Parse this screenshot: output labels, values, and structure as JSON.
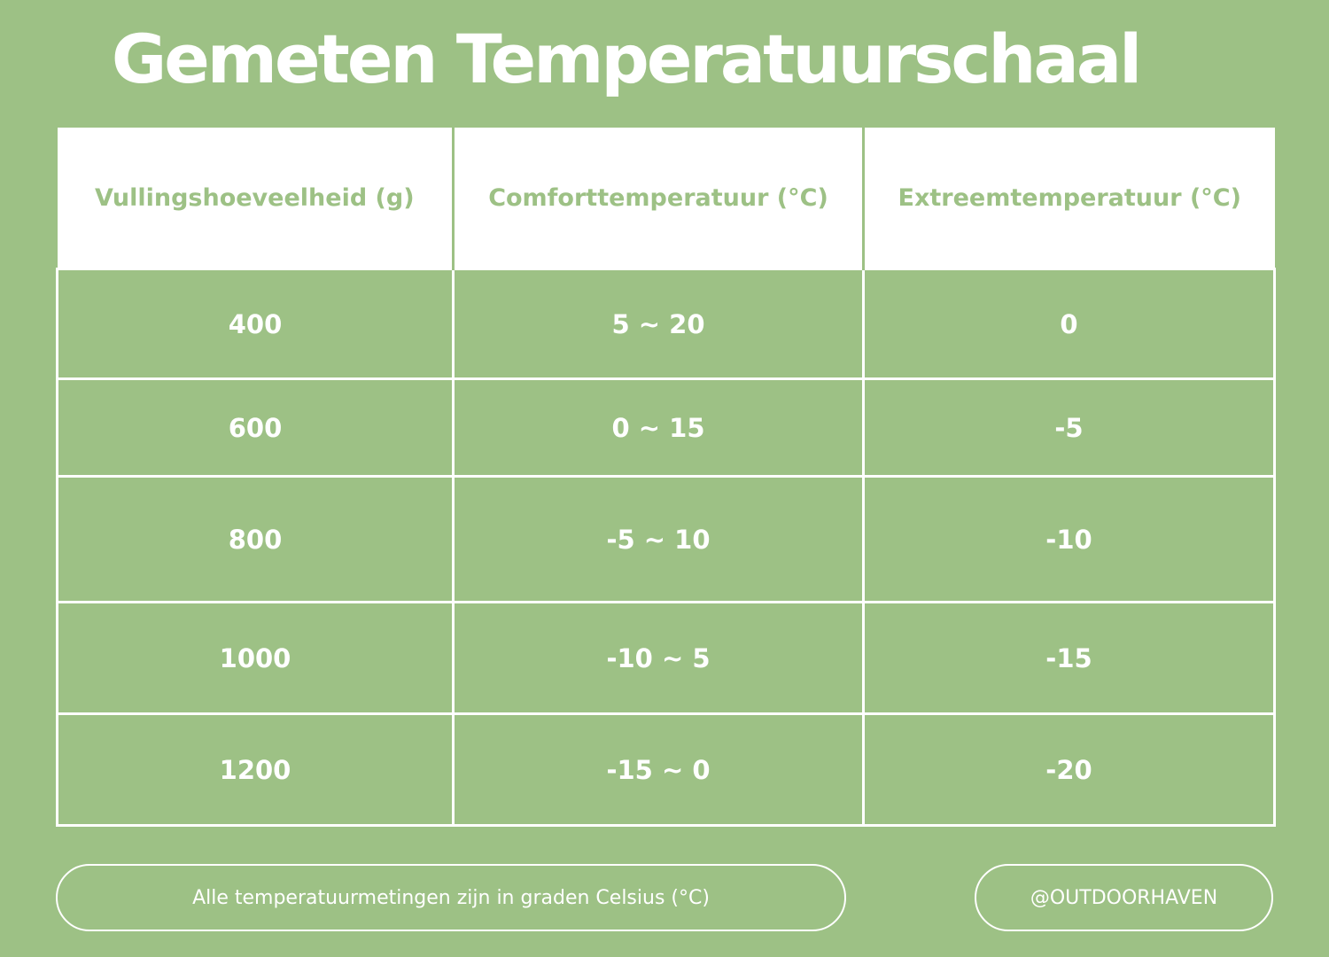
{
  "header": {
    "title": "Gemeten Temperatuurschaal"
  },
  "table": {
    "columns": [
      "Vullingshoeveelheid (g)",
      "Comforttemperatuur (°C)",
      "Extreemtemperatuur (°C)"
    ],
    "rows": [
      [
        "400",
        "5 ~ 20",
        "0"
      ],
      [
        "600",
        "0 ~ 15",
        "-5"
      ],
      [
        "800",
        "-5 ~ 10",
        "-10"
      ],
      [
        "1000",
        "-10 ~ 5",
        "-15"
      ],
      [
        "1200",
        "-15 ~ 0",
        "-20"
      ]
    ]
  },
  "footer": {
    "note": "Alle temperatuurmetingen zijn in graden Celsius (°C)",
    "handle": "@OUTDOORHAVEN"
  }
}
